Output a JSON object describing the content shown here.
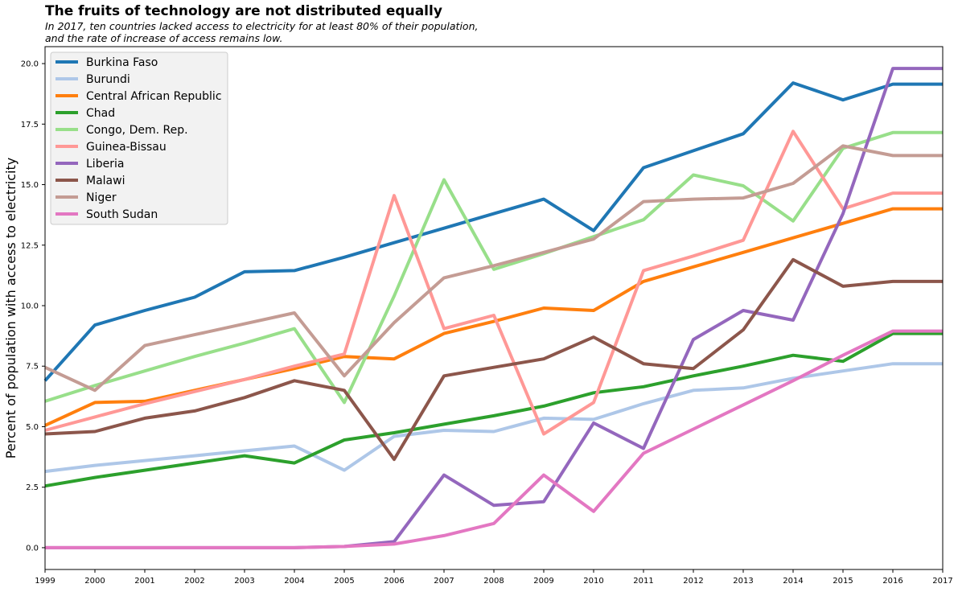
{
  "chart_data": {
    "type": "line",
    "title": "The fruits of technology are not distributed equally",
    "subtitle": "In 2017, ten countries lacked access to electricity for at least 80% of their population,\nand the rate of increase of access remains low.",
    "xlabel": "",
    "ylabel": "Percent of population with access to electricity",
    "xlim": [
      1999,
      2017
    ],
    "ylim": [
      -0.9,
      20.7
    ],
    "x_ticks": [
      "1999",
      "2000",
      "2001",
      "2002",
      "2003",
      "2004",
      "2005",
      "2006",
      "2007",
      "2008",
      "2009",
      "2010",
      "2011",
      "2012",
      "2013",
      "2014",
      "2015",
      "2016",
      "2017"
    ],
    "y_ticks": [
      "0.0",
      "2.5",
      "5.0",
      "7.5",
      "10.0",
      "12.5",
      "15.0",
      "17.5",
      "20.0"
    ],
    "legend_position": "upper-left",
    "grid": false,
    "x": [
      1999,
      2000,
      2001,
      2002,
      2003,
      2004,
      2005,
      2006,
      2007,
      2008,
      2009,
      2010,
      2011,
      2012,
      2013,
      2014,
      2015,
      2016,
      2017
    ],
    "series": [
      {
        "name": "Burkina Faso",
        "color": "#1f77b4",
        "values": [
          6.9,
          9.2,
          9.8,
          10.35,
          11.4,
          11.45,
          12.0,
          12.6,
          13.2,
          13.8,
          14.4,
          13.1,
          15.7,
          16.4,
          17.1,
          19.2,
          18.5,
          19.15,
          19.15
        ]
      },
      {
        "name": "Burundi",
        "color": "#aec7e8",
        "values": [
          3.15,
          3.4,
          3.6,
          3.8,
          4.0,
          4.2,
          3.2,
          4.6,
          4.85,
          4.8,
          5.35,
          5.3,
          5.95,
          6.5,
          6.6,
          7.0,
          7.3,
          7.6,
          7.6
        ]
      },
      {
        "name": "Central African Republic",
        "color": "#ff7f0e",
        "values": [
          5.05,
          6.0,
          6.05,
          6.5,
          6.95,
          7.4,
          7.9,
          7.8,
          8.85,
          9.35,
          9.9,
          9.8,
          11.0,
          11.6,
          12.2,
          12.8,
          13.4,
          14.0,
          14.0
        ]
      },
      {
        "name": "Chad",
        "color": "#2ca02c",
        "values": [
          2.55,
          2.9,
          3.2,
          3.5,
          3.8,
          3.5,
          4.45,
          4.75,
          5.1,
          5.45,
          5.85,
          6.4,
          6.65,
          7.1,
          7.5,
          7.95,
          7.7,
          8.85,
          8.85
        ]
      },
      {
        "name": "Congo, Dem. Rep.",
        "color": "#98df8a",
        "values": [
          6.05,
          6.7,
          7.3,
          7.9,
          8.45,
          9.05,
          6.0,
          10.4,
          15.2,
          11.5,
          12.15,
          12.85,
          13.55,
          15.4,
          14.95,
          13.5,
          16.5,
          17.15,
          17.15
        ]
      },
      {
        "name": "Guinea-Bissau",
        "color": "#ff9896",
        "values": [
          4.85,
          5.4,
          5.95,
          6.45,
          6.95,
          7.5,
          8.0,
          14.55,
          9.05,
          9.6,
          4.7,
          6.0,
          11.45,
          12.05,
          12.7,
          17.2,
          14.0,
          14.65,
          14.65
        ]
      },
      {
        "name": "Liberia",
        "color": "#9467bd",
        "values": [
          0.0,
          0.0,
          0.0,
          0.0,
          0.0,
          0.0,
          0.05,
          0.25,
          3.0,
          1.75,
          1.9,
          5.15,
          4.1,
          8.6,
          9.8,
          9.4,
          13.8,
          19.8,
          19.8
        ]
      },
      {
        "name": "Malawi",
        "color": "#8c564b",
        "values": [
          4.7,
          4.8,
          5.35,
          5.65,
          6.2,
          6.9,
          6.5,
          3.65,
          7.1,
          7.45,
          7.8,
          8.7,
          7.6,
          7.4,
          9.0,
          11.9,
          10.8,
          11.0,
          11.0
        ]
      },
      {
        "name": "Niger",
        "color": "#c49c94",
        "values": [
          7.45,
          6.5,
          8.35,
          8.8,
          9.25,
          9.7,
          7.1,
          9.3,
          11.15,
          11.65,
          12.2,
          12.75,
          14.3,
          14.4,
          14.45,
          15.05,
          16.6,
          16.2,
          16.2
        ]
      },
      {
        "name": "South Sudan",
        "color": "#e377c2",
        "values": [
          0.0,
          0.0,
          0.0,
          0.0,
          0.0,
          0.0,
          0.05,
          0.15,
          0.5,
          1.0,
          3.0,
          1.5,
          3.9,
          4.9,
          5.9,
          6.9,
          7.95,
          8.95,
          8.95
        ]
      }
    ]
  }
}
